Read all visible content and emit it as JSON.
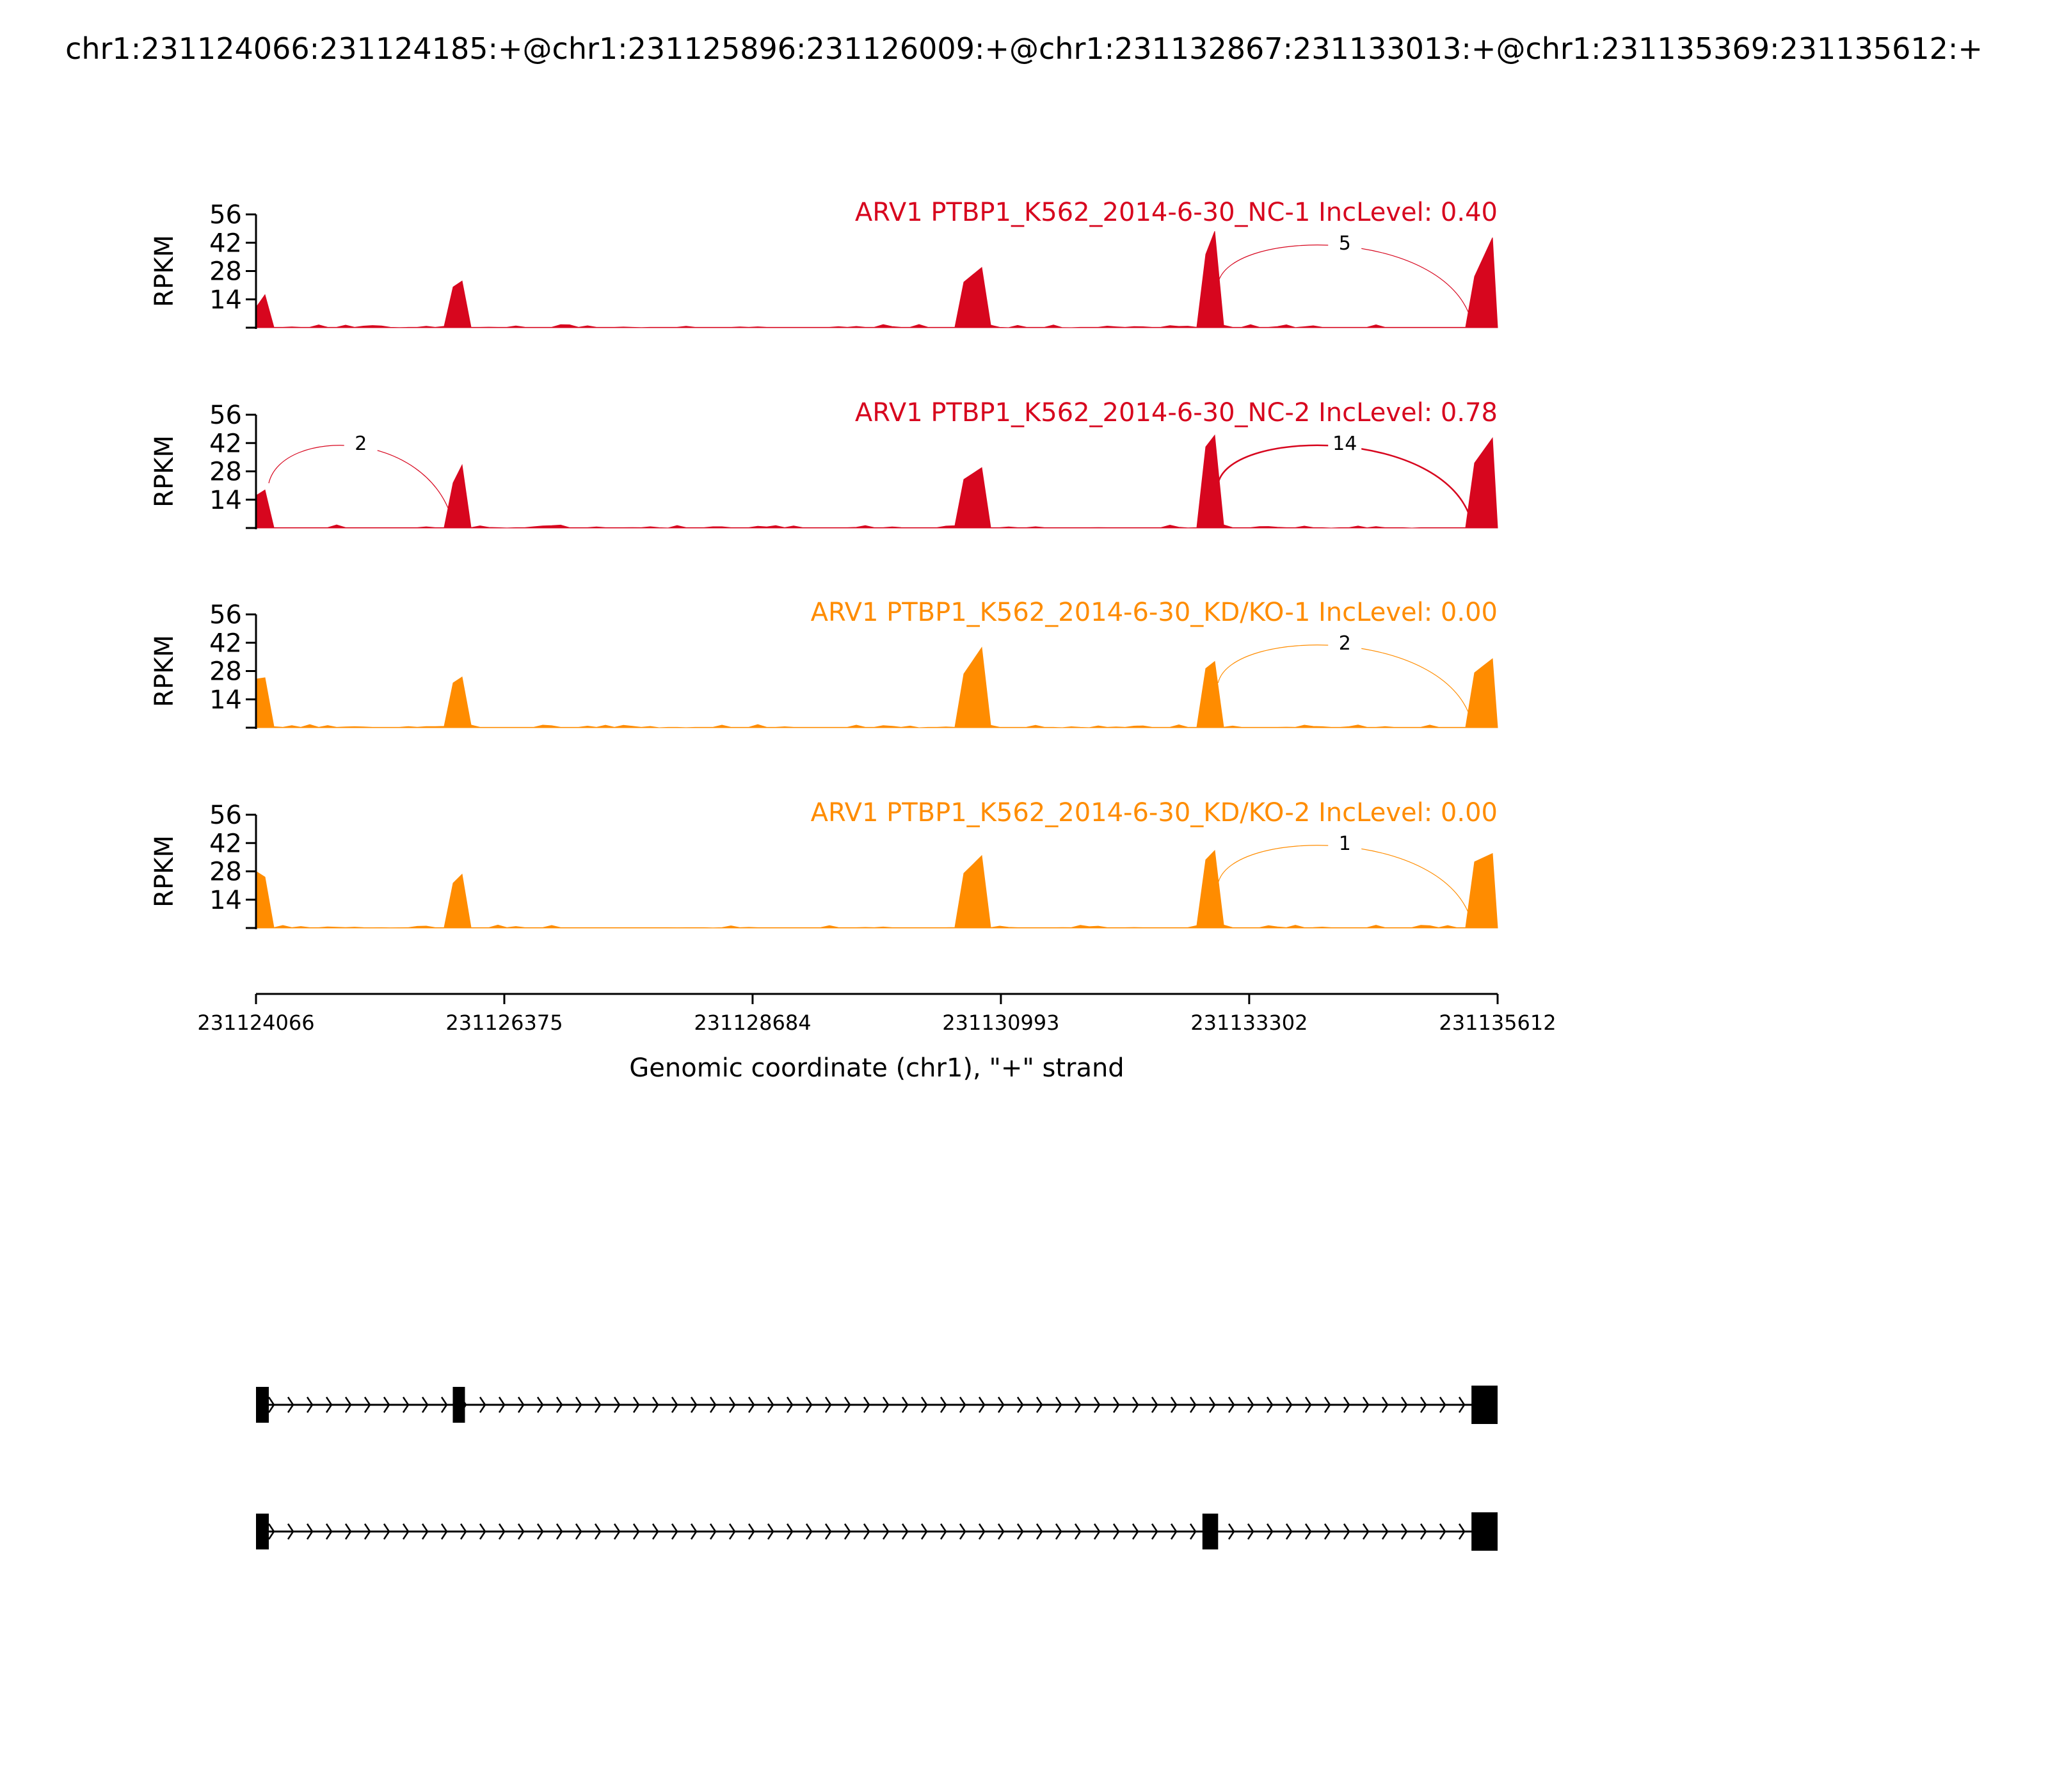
{
  "title": "chr1:231124066:231124185:+@chr1:231125896:231126009:+@chr1:231132867:231133013:+@chr1:231135369:231135612:+",
  "colors": {
    "nc": "#d7061e",
    "kd": "#ff8c00",
    "axis": "#000000"
  },
  "chart_data": {
    "type": "area",
    "chart_kind": "sashimi",
    "xlabel": "Genomic coordinate (chr1), \"+\" strand",
    "xlim": [
      231124066,
      231135612
    ],
    "xticks": [
      "231124066",
      "231126375",
      "231128684",
      "231130993",
      "231133302",
      "231135612"
    ],
    "ylabel": "RPKM",
    "ylim": [
      0,
      56
    ],
    "yticks": [
      "14",
      "28",
      "42",
      "56"
    ],
    "exons": [
      [
        231124066,
        231124185
      ],
      [
        231125896,
        231126009
      ],
      [
        231132867,
        231133013
      ],
      [
        231135369,
        231135612
      ]
    ],
    "tracks": [
      {
        "label": "ARV1 PTBP1_K562_2014-6-30_NC-1 IncLevel: 0.40",
        "color": "#d7061e",
        "exon_peaks": [
          [
            10,
            19
          ],
          [
            20,
            24
          ],
          [
            0,
            0
          ],
          [
            22,
            50
          ]
        ],
        "exon_peaks_2": [
          [
            20,
            30
          ],
          [
            32,
            52
          ]
        ],
        "junctions": [
          {
            "from": 231133013,
            "to": 231135369,
            "count": "5",
            "side": "above"
          }
        ]
      },
      {
        "label": "ARV1 PTBP1_K562_2014-6-30_NC-2 IncLevel: 0.78",
        "color": "#d7061e",
        "exon_peaks": [
          [
            16,
            20
          ],
          [
            22,
            34
          ],
          [
            0,
            0
          ],
          [
            30,
            48
          ]
        ],
        "exon_peaks_2": [
          [
            22,
            30
          ],
          [
            38,
            48
          ]
        ],
        "junctions": [
          {
            "from": 231124185,
            "to": 231125896,
            "count": "2",
            "side": "above"
          },
          {
            "from": 231133013,
            "to": 231135369,
            "count": "14",
            "side": "above"
          }
        ]
      },
      {
        "label": "ARV1 PTBP1_K562_2014-6-30_KD/KO-1 IncLevel: 0.00",
        "color": "#ff8c00",
        "exon_peaks": [
          [
            24,
            25
          ],
          [
            22,
            26
          ],
          [
            0,
            0
          ],
          [
            26,
            36
          ]
        ],
        "exon_peaks_2": [
          [
            22,
            40
          ],
          [
            28,
            34
          ]
        ],
        "junctions": [
          {
            "from": 231133013,
            "to": 231135369,
            "count": "2",
            "side": "above"
          }
        ]
      },
      {
        "label": "ARV1 PTBP1_K562_2014-6-30_KD/KO-2 IncLevel: 0.00",
        "color": "#ff8c00",
        "exon_peaks": [
          [
            28,
            24
          ],
          [
            22,
            28
          ],
          [
            0,
            0
          ],
          [
            32,
            38
          ]
        ],
        "exon_peaks_2": [
          [
            24,
            36
          ],
          [
            32,
            40
          ]
        ],
        "junctions": [
          {
            "from": 231133013,
            "to": 231135369,
            "count": "1",
            "side": "above"
          }
        ]
      }
    ],
    "isoforms": [
      {
        "exons": [
          [
            231124066,
            231124185
          ],
          [
            231125896,
            231126009
          ],
          [
            231135369,
            231135612
          ]
        ]
      },
      {
        "exons": [
          [
            231124066,
            231124185
          ],
          [
            231132867,
            231133013
          ],
          [
            231135369,
            231135612
          ]
        ]
      }
    ]
  }
}
